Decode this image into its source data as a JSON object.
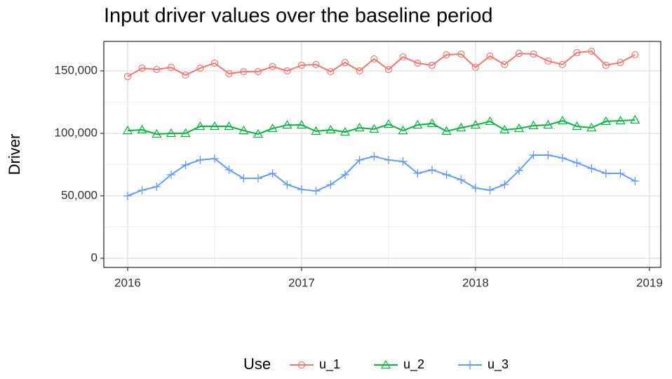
{
  "chart_data": {
    "type": "line",
    "title": "Input driver values over the baseline period",
    "y_label": "Driver",
    "legend_title": "Use",
    "legend": "bottom",
    "grid": true,
    "x": [
      2016,
      2016.083,
      2016.167,
      2016.25,
      2016.333,
      2016.417,
      2016.5,
      2016.583,
      2016.667,
      2016.75,
      2016.833,
      2016.917,
      2017,
      2017.083,
      2017.167,
      2017.25,
      2017.333,
      2017.417,
      2017.5,
      2017.583,
      2017.667,
      2017.75,
      2017.833,
      2017.917,
      2018,
      2018.083,
      2018.167,
      2018.25,
      2018.333,
      2018.417,
      2018.5,
      2018.583,
      2018.667,
      2018.75,
      2018.833,
      2018.917
    ],
    "xlim": [
      2015.863,
      2019.065
    ],
    "xticks": [
      2016,
      2017,
      2018,
      2019
    ],
    "x_minor_ticks": [
      2016.5,
      2017.5,
      2018.5
    ],
    "ylim": [
      -7300,
      173600
    ],
    "yticks": [
      0,
      {
        "value": 50000,
        "label": "50,000"
      },
      {
        "value": 100000,
        "label": "100,000"
      },
      {
        "value": 150000,
        "label": "150,000"
      }
    ],
    "y_minor_ticks": [
      25000,
      75000,
      125000
    ],
    "series": [
      {
        "name": "u_1",
        "color": "#F8766D",
        "marker": "circle",
        "values": [
          145500,
          152200,
          151100,
          152800,
          146600,
          152200,
          156200,
          147800,
          149400,
          149400,
          153400,
          150000,
          154500,
          155100,
          149400,
          156700,
          150000,
          159600,
          151100,
          161200,
          156200,
          154500,
          162900,
          163500,
          152800,
          161800,
          155100,
          164000,
          163500,
          157900,
          155100,
          164600,
          165700,
          154500,
          156700,
          162900
        ]
      },
      {
        "name": "u_2",
        "color": "#00BA38",
        "marker": "triangle",
        "values": [
          102200,
          102800,
          99400,
          100000,
          100000,
          105600,
          105600,
          105600,
          102200,
          99400,
          103900,
          106700,
          106700,
          101700,
          102800,
          101100,
          104500,
          103400,
          107300,
          102200,
          106700,
          107900,
          101700,
          104500,
          106700,
          109600,
          102800,
          103900,
          106200,
          106700,
          110100,
          105600,
          104500,
          109600,
          110100,
          110700
        ]
      },
      {
        "name": "u_3",
        "color": "#619CFF",
        "marker": "plus",
        "values": [
          50000,
          54500,
          57300,
          66900,
          74700,
          78700,
          79800,
          70800,
          64000,
          64000,
          68000,
          59000,
          55100,
          53900,
          59000,
          66900,
          78700,
          81500,
          78700,
          77500,
          68000,
          70800,
          66900,
          62900,
          56200,
          54500,
          59000,
          70200,
          82600,
          82600,
          80300,
          76400,
          71900,
          68000,
          68000,
          61800
        ]
      }
    ]
  }
}
